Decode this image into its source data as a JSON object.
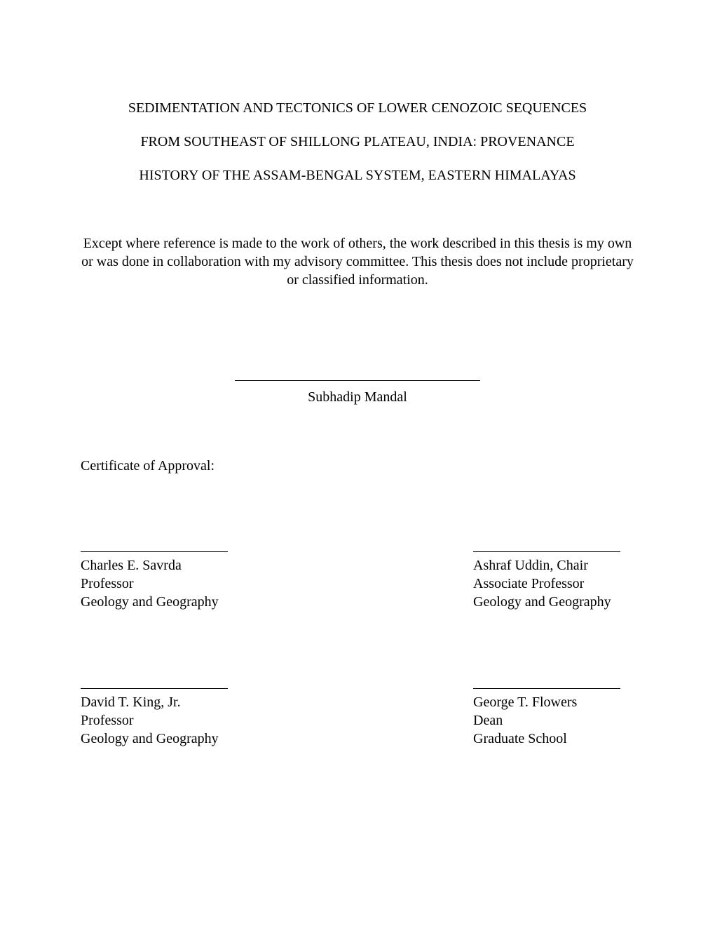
{
  "title": {
    "line1": "SEDIMENTATION AND TECTONICS OF LOWER CENOZOIC SEQUENCES",
    "line2": "FROM SOUTHEAST OF SHILLONG PLATEAU, INDIA: PROVENANCE",
    "line3": "HISTORY OF THE ASSAM-BENGAL SYSTEM, EASTERN HIMALAYAS"
  },
  "declaration": "Except where reference is made to the work of others, the work described in this thesis is my own or was done in collaboration with my advisory committee. This thesis does not include proprietary or classified information.",
  "author": "Subhadip Mandal",
  "cert_label": "Certificate of Approval:",
  "committee": {
    "topLeft": {
      "name": "Charles E. Savrda",
      "title": "Professor",
      "dept": "Geology and Geography"
    },
    "topRight": {
      "name": "Ashraf Uddin, Chair",
      "title": "Associate Professor",
      "dept": "Geology and Geography"
    },
    "bottomLeft": {
      "name": "David T. King, Jr.",
      "title": "Professor",
      "dept": "Geology and Geography"
    },
    "bottomRight": {
      "name": "George T. Flowers",
      "title": "Dean",
      "dept": "Graduate School"
    }
  }
}
